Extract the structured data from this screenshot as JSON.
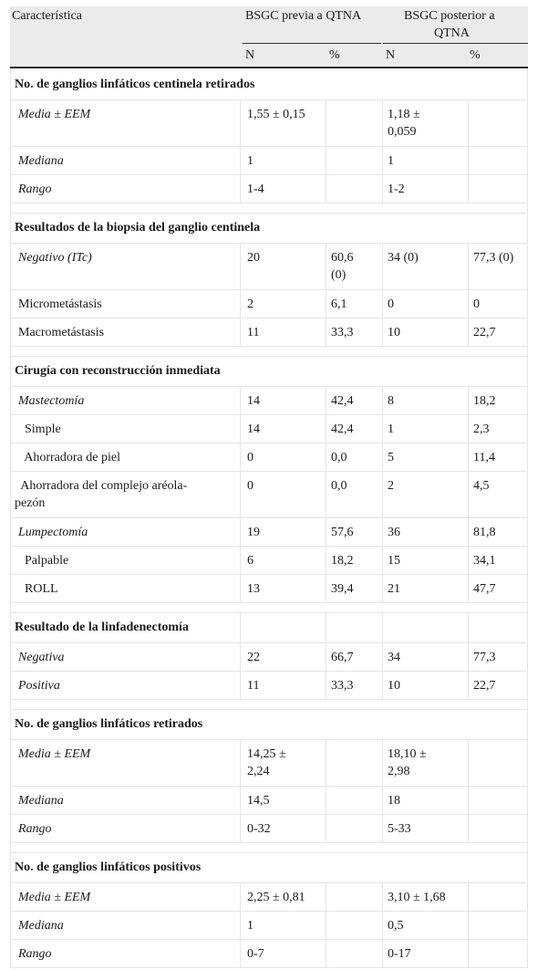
{
  "header": {
    "characteristic": "Característica",
    "group_before": "BSGC previa a QTNA",
    "group_after_line1": "BSGC posterior a",
    "group_after_line2": "QTNA",
    "n": "N",
    "pct": "%"
  },
  "sections": [
    {
      "title": "No. de ganglios linfáticos centinela retirados",
      "rows": [
        {
          "label": "Media ± EEM",
          "italic": true,
          "n1": "1,55 ± 0,15",
          "p1": "",
          "n2": "1,18 ±\n0,059",
          "p2": ""
        },
        {
          "label": "Mediana",
          "italic": true,
          "n1": "1",
          "p1": "",
          "n2": "1",
          "p2": ""
        },
        {
          "label": "Rango",
          "italic": true,
          "n1": "1-4",
          "p1": "",
          "n2": "1-2",
          "p2": ""
        }
      ]
    },
    {
      "title": "Resultados de la biopsia del ganglio centinela",
      "rows": [
        {
          "label": "Negativo (ITc)",
          "italic": true,
          "n1": "20",
          "p1": "60,6\n(0)",
          "n2": "34 (0)",
          "p2": "77,3 (0)"
        },
        {
          "label": "Micrometástasis",
          "italic": false,
          "n1": "2",
          "p1": "6,1",
          "n2": "0",
          "p2": "0"
        },
        {
          "label": "Macrometástasis",
          "italic": false,
          "n1": "11",
          "p1": "33,3",
          "n2": "10",
          "p2": "22,7"
        }
      ]
    },
    {
      "title": "Cirugía con reconstrucción inmediata",
      "rows": [
        {
          "label": "Mastectomía",
          "italic": true,
          "n1": "14",
          "p1": "42,4",
          "n2": "8",
          "p2": "18,2"
        },
        {
          "label": "  Simple",
          "italic": false,
          "n1": "14",
          "p1": "42,4",
          "n2": "1",
          "p2": "2,3"
        },
        {
          "label": "  Ahorradora de piel",
          "italic": false,
          "n1": "0",
          "p1": "0,0",
          "n2": "5",
          "p2": "11,4"
        },
        {
          "label": "  Ahorradora del complejo aréola-\npezón",
          "italic": false,
          "n1": "0",
          "p1": "0,0",
          "n2": "2",
          "p2": "4,5"
        },
        {
          "label": "Lumpectomía",
          "italic": true,
          "n1": "19",
          "p1": "57,6",
          "n2": "36",
          "p2": "81,8"
        },
        {
          "label": "  Palpable",
          "italic": false,
          "n1": "6",
          "p1": "18,2",
          "n2": "15",
          "p2": "34,1"
        },
        {
          "label": "  ROLL",
          "italic": false,
          "n1": "13",
          "p1": "39,4",
          "n2": "21",
          "p2": "47,7"
        }
      ]
    },
    {
      "title": "Resultado de la linfadenectomía",
      "rows": [
        {
          "label": "Negativa",
          "italic": true,
          "n1": "22",
          "p1": "66,7",
          "n2": "34",
          "p2": "77,3"
        },
        {
          "label": "Positiva",
          "italic": true,
          "n1": "11",
          "p1": "33,3",
          "n2": "10",
          "p2": "22,7"
        }
      ]
    },
    {
      "title": "No. de ganglios linfáticos retirados",
      "rows": [
        {
          "label": "Media ± EEM",
          "italic": true,
          "n1": "14,25 ±\n2,24",
          "p1": "",
          "n2": "18,10 ±\n2,98",
          "p2": ""
        },
        {
          "label": "Mediana",
          "italic": true,
          "n1": "14,5",
          "p1": "",
          "n2": "18",
          "p2": ""
        },
        {
          "label": "Rango",
          "italic": true,
          "n1": "0-32",
          "p1": "",
          "n2": "5-33",
          "p2": ""
        }
      ]
    },
    {
      "title": "No. de ganglios linfáticos positivos",
      "rows": [
        {
          "label": "Media ± EEM",
          "italic": true,
          "n1": "2,25 ± 0,81",
          "p1": "",
          "n2": "3,10 ± 1,68",
          "p2": ""
        },
        {
          "label": "Mediana",
          "italic": true,
          "n1": "1",
          "p1": "",
          "n2": "0,5",
          "p2": ""
        },
        {
          "label": "Rango",
          "italic": true,
          "n1": "0-7",
          "p1": "",
          "n2": "0-17",
          "p2": ""
        }
      ]
    }
  ]
}
